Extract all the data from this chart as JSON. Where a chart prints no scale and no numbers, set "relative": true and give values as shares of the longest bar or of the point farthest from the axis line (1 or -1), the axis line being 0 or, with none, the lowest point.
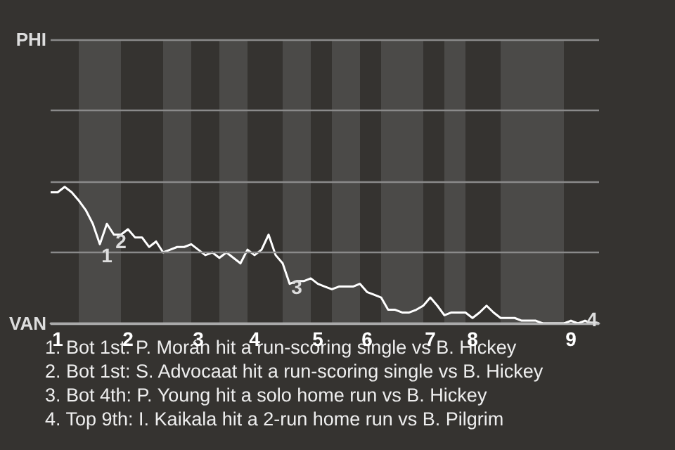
{
  "chart_data": {
    "type": "line",
    "relative": true,
    "categories": [
      null,
      "1",
      null,
      null,
      null,
      null,
      null,
      null,
      null,
      null,
      null,
      "2",
      null,
      null,
      null,
      null,
      null,
      null,
      null,
      null,
      null,
      "3",
      null,
      null,
      null,
      null,
      null,
      null,
      null,
      "4",
      null,
      null,
      null,
      null,
      null,
      null,
      null,
      null,
      "5",
      null,
      null,
      null,
      null,
      null,
      null,
      "6",
      null,
      null,
      null,
      null,
      null,
      null,
      null,
      null,
      "7",
      null,
      null,
      null,
      null,
      null,
      "8",
      null,
      null,
      null,
      null,
      null,
      null,
      null,
      null,
      null,
      null,
      null,
      null,
      null,
      "9",
      null,
      null,
      null,
      null
    ],
    "series": [
      {
        "color": "#ffffff",
        "values": [
          0.96,
          0.96,
          1,
          0.96,
          0.9,
          0.83,
          0.73,
          0.58,
          0.73,
          0.65,
          0.65,
          0.69,
          0.63,
          0.63,
          0.56,
          0.6,
          0.52,
          0.54,
          0.56,
          0.56,
          0.58,
          0.54,
          0.5,
          0.52,
          0.48,
          0.52,
          0.48,
          0.44,
          0.54,
          0.5,
          0.54,
          0.65,
          0.5,
          0.44,
          0.29,
          0.31,
          0.31,
          0.33,
          0.29,
          0.27,
          0.25,
          0.27,
          0.27,
          0.27,
          0.29,
          0.23,
          0.21,
          0.19,
          0.1,
          0.1,
          0.08,
          0.08,
          0.1,
          0.13,
          0.19,
          0.13,
          0.06,
          0.08,
          0.08,
          0.08,
          0.04,
          0.08,
          0.13,
          0.08,
          0.04,
          0.04,
          0.04,
          0.02,
          0.02,
          0.02,
          0,
          0,
          0,
          0,
          0.02,
          0,
          0.02,
          0,
          0
        ]
      }
    ],
    "ref_lines": [
      {
        "axis": "y",
        "value": 0,
        "label": "VAN",
        "color": "#aaaaaa"
      },
      {
        "axis": "y",
        "value": 0.52,
        "color": "#8a8a8a"
      },
      {
        "axis": "y",
        "value": 1.04,
        "color": "#8a8a8a"
      },
      {
        "axis": "y",
        "value": 1.56,
        "color": "#8a8a8a"
      },
      {
        "axis": "y",
        "value": 2.08,
        "label": "PHI",
        "color": "#8a8a8a"
      }
    ],
    "marker": "none",
    "annotations": [
      "1",
      "2",
      "3",
      "4",
      "1. Bot 1st: P. Morán hit a run-scoring single vs B. Hickey",
      "2. Bot 1st: S. Advocaat hit a run-scoring single vs B. Hickey",
      "3. Bot 4th: P. Young hit a solo home run vs B. Hickey",
      "4. Top 9th: I. Kaikala hit a 2-run home run vs B. Pilgrim"
    ]
  }
}
